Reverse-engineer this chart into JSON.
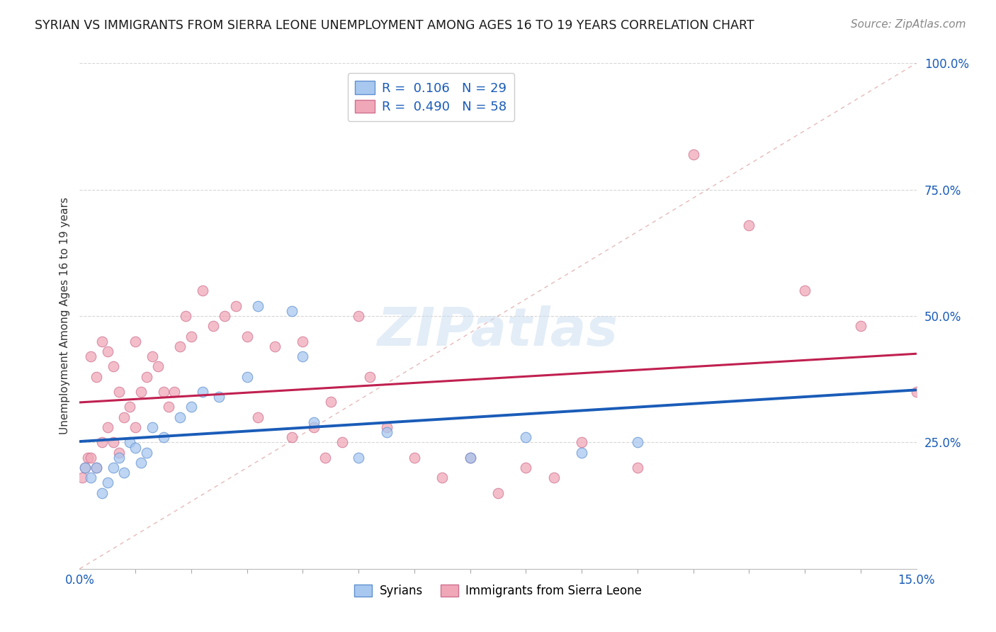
{
  "title": "SYRIAN VS IMMIGRANTS FROM SIERRA LEONE UNEMPLOYMENT AMONG AGES 16 TO 19 YEARS CORRELATION CHART",
  "source": "Source: ZipAtlas.com",
  "ylabel": "Unemployment Among Ages 16 to 19 years",
  "xlim": [
    0.0,
    0.15
  ],
  "ylim": [
    0.0,
    1.0
  ],
  "background_color": "#ffffff",
  "grid_color": "#cccccc",
  "syrian_x": [
    0.001,
    0.002,
    0.003,
    0.004,
    0.005,
    0.006,
    0.007,
    0.008,
    0.009,
    0.01,
    0.011,
    0.012,
    0.013,
    0.015,
    0.018,
    0.02,
    0.022,
    0.025,
    0.03,
    0.032,
    0.038,
    0.04,
    0.042,
    0.05,
    0.055,
    0.07,
    0.08,
    0.09,
    0.1
  ],
  "syrian_y": [
    0.2,
    0.18,
    0.2,
    0.15,
    0.17,
    0.2,
    0.22,
    0.19,
    0.25,
    0.24,
    0.21,
    0.23,
    0.28,
    0.26,
    0.3,
    0.32,
    0.35,
    0.34,
    0.38,
    0.52,
    0.51,
    0.42,
    0.29,
    0.22,
    0.27,
    0.22,
    0.26,
    0.23,
    0.25
  ],
  "sl_x": [
    0.0005,
    0.001,
    0.0015,
    0.002,
    0.002,
    0.003,
    0.003,
    0.004,
    0.004,
    0.005,
    0.005,
    0.006,
    0.006,
    0.007,
    0.007,
    0.008,
    0.009,
    0.01,
    0.01,
    0.011,
    0.012,
    0.013,
    0.014,
    0.015,
    0.016,
    0.017,
    0.018,
    0.019,
    0.02,
    0.022,
    0.024,
    0.026,
    0.028,
    0.03,
    0.032,
    0.035,
    0.038,
    0.04,
    0.042,
    0.044,
    0.045,
    0.047,
    0.05,
    0.052,
    0.055,
    0.06,
    0.065,
    0.07,
    0.075,
    0.08,
    0.085,
    0.09,
    0.1,
    0.11,
    0.12,
    0.13,
    0.14,
    0.15
  ],
  "sl_y": [
    0.18,
    0.2,
    0.22,
    0.22,
    0.42,
    0.2,
    0.38,
    0.25,
    0.45,
    0.28,
    0.43,
    0.25,
    0.4,
    0.23,
    0.35,
    0.3,
    0.32,
    0.28,
    0.45,
    0.35,
    0.38,
    0.42,
    0.4,
    0.35,
    0.32,
    0.35,
    0.44,
    0.5,
    0.46,
    0.55,
    0.48,
    0.5,
    0.52,
    0.46,
    0.3,
    0.44,
    0.26,
    0.45,
    0.28,
    0.22,
    0.33,
    0.25,
    0.5,
    0.38,
    0.28,
    0.22,
    0.18,
    0.22,
    0.15,
    0.2,
    0.18,
    0.25,
    0.2,
    0.82,
    0.68,
    0.55,
    0.48,
    0.35
  ],
  "syrian_color": "#a8c8f0",
  "sl_color": "#f0a8b8",
  "syrian_edge_color": "#6090d0",
  "sl_edge_color": "#d07090",
  "syrian_line_color": "#1a5cb8",
  "sl_line_color": "#c02050",
  "diagonal_color": "#d08080",
  "R_syrian": "0.106",
  "N_syrian": "29",
  "R_sl": "0.490",
  "N_sl": "58",
  "stat_color": "#1a5cb8"
}
